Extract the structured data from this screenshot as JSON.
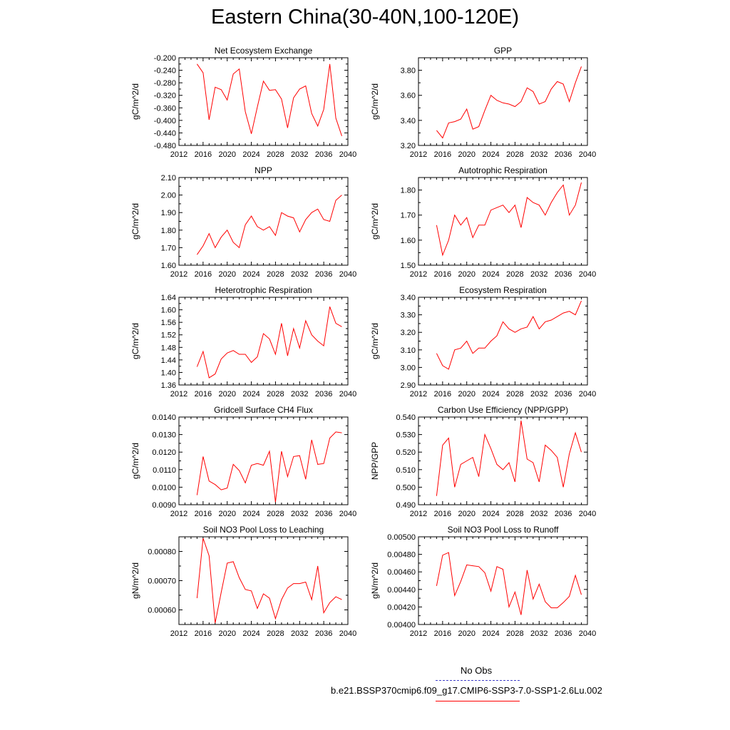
{
  "title": "Eastern China(30-40N,100-120E)",
  "legend": {
    "items": [
      {
        "label": "No Obs",
        "color": "#4040c8",
        "style": "dashed"
      },
      {
        "label": "b.e21.BSSP370cmip6.f09_g17.CMIP6-SSP3-7.0-SSP1-2.6Lu.002",
        "color": "#ff0000",
        "style": "solid"
      }
    ]
  },
  "colors": {
    "series": "#ff0000",
    "axis": "#000000"
  },
  "chart_data": [
    {
      "type": "line",
      "title": "Net Ecosystem Exchange",
      "ylabel": "gC/m^2/d",
      "xlim": [
        2012,
        2040
      ],
      "ylim": [
        -0.48,
        -0.2
      ],
      "yticks": [
        "-0.480",
        "-0.440",
        "-0.400",
        "-0.360",
        "-0.320",
        "-0.280",
        "-0.240",
        "-0.200"
      ],
      "ytick_values": [
        -0.48,
        -0.44,
        -0.4,
        -0.36,
        -0.32,
        -0.28,
        -0.24,
        -0.2
      ],
      "xticks": [
        "2012",
        "2016",
        "2020",
        "2024",
        "2028",
        "2032",
        "2036",
        "2040"
      ],
      "series": [
        {
          "name": "b.e21.BSSP370cmip6.f09_g17.CMIP6-SSP3-7.0-SSP1-2.6Lu.002",
          "x": [
            2015,
            2016,
            2017,
            2018,
            2019,
            2020,
            2021,
            2022,
            2023,
            2024,
            2025,
            2026,
            2027,
            2028,
            2029,
            2030,
            2031,
            2032,
            2033,
            2034,
            2035,
            2036,
            2037,
            2038,
            2039
          ],
          "values": [
            -0.22,
            -0.248,
            -0.398,
            -0.294,
            -0.302,
            -0.335,
            -0.252,
            -0.236,
            -0.372,
            -0.443,
            -0.357,
            -0.275,
            -0.304,
            -0.302,
            -0.332,
            -0.424,
            -0.328,
            -0.3,
            -0.29,
            -0.378,
            -0.418,
            -0.365,
            -0.22,
            -0.393,
            -0.45
          ]
        }
      ]
    },
    {
      "type": "line",
      "title": "GPP",
      "ylabel": "gC/m^2/d",
      "xlim": [
        2012,
        2040
      ],
      "ylim": [
        3.2,
        3.9
      ],
      "yticks": [
        "3.20",
        "3.40",
        "3.60",
        "3.80"
      ],
      "ytick_values": [
        3.2,
        3.4,
        3.6,
        3.8
      ],
      "xticks": [
        "2012",
        "2016",
        "2020",
        "2024",
        "2028",
        "2032",
        "2036",
        "2040"
      ],
      "series": [
        {
          "name": "b.e21.BSSP370cmip6.f09_g17.CMIP6-SSP3-7.0-SSP1-2.6Lu.002",
          "x": [
            2015,
            2016,
            2017,
            2018,
            2019,
            2020,
            2021,
            2022,
            2023,
            2024,
            2025,
            2026,
            2027,
            2028,
            2029,
            2030,
            2031,
            2032,
            2033,
            2034,
            2035,
            2036,
            2037,
            2038,
            2039
          ],
          "values": [
            3.32,
            3.26,
            3.38,
            3.39,
            3.41,
            3.49,
            3.33,
            3.35,
            3.48,
            3.6,
            3.56,
            3.54,
            3.53,
            3.51,
            3.55,
            3.66,
            3.63,
            3.53,
            3.55,
            3.65,
            3.71,
            3.69,
            3.55,
            3.7,
            3.83
          ]
        }
      ]
    },
    {
      "type": "line",
      "title": "NPP",
      "ylabel": "gC/m^2/d",
      "xlim": [
        2012,
        2040
      ],
      "ylim": [
        1.6,
        2.1
      ],
      "yticks": [
        "1.60",
        "1.70",
        "1.80",
        "1.90",
        "2.00",
        "2.10"
      ],
      "ytick_values": [
        1.6,
        1.7,
        1.8,
        1.9,
        2.0,
        2.1
      ],
      "xticks": [
        "2012",
        "2016",
        "2020",
        "2024",
        "2028",
        "2032",
        "2036",
        "2040"
      ],
      "series": [
        {
          "name": "b.e21.BSSP370cmip6.f09_g17.CMIP6-SSP3-7.0-SSP1-2.6Lu.002",
          "x": [
            2015,
            2016,
            2017,
            2018,
            2019,
            2020,
            2021,
            2022,
            2023,
            2024,
            2025,
            2026,
            2027,
            2028,
            2029,
            2030,
            2031,
            2032,
            2033,
            2034,
            2035,
            2036,
            2037,
            2038,
            2039
          ],
          "values": [
            1.66,
            1.71,
            1.78,
            1.7,
            1.76,
            1.8,
            1.73,
            1.7,
            1.83,
            1.88,
            1.82,
            1.8,
            1.82,
            1.77,
            1.9,
            1.88,
            1.87,
            1.79,
            1.86,
            1.9,
            1.92,
            1.86,
            1.85,
            1.97,
            2.0
          ]
        }
      ]
    },
    {
      "type": "line",
      "title": "Autotrophic Respiration",
      "ylabel": "gC/m^2/d",
      "xlim": [
        2012,
        2040
      ],
      "ylim": [
        1.5,
        1.85
      ],
      "yticks": [
        "1.50",
        "1.60",
        "1.70",
        "1.80"
      ],
      "ytick_values": [
        1.5,
        1.6,
        1.7,
        1.8
      ],
      "xticks": [
        "2012",
        "2016",
        "2020",
        "2024",
        "2028",
        "2032",
        "2036",
        "2040"
      ],
      "series": [
        {
          "name": "b.e21.BSSP370cmip6.f09_g17.CMIP6-SSP3-7.0-SSP1-2.6Lu.002",
          "x": [
            2015,
            2016,
            2017,
            2018,
            2019,
            2020,
            2021,
            2022,
            2023,
            2024,
            2025,
            2026,
            2027,
            2028,
            2029,
            2030,
            2031,
            2032,
            2033,
            2034,
            2035,
            2036,
            2037,
            2038,
            2039
          ],
          "values": [
            1.66,
            1.54,
            1.6,
            1.7,
            1.66,
            1.69,
            1.61,
            1.66,
            1.66,
            1.72,
            1.73,
            1.74,
            1.71,
            1.74,
            1.65,
            1.77,
            1.75,
            1.74,
            1.7,
            1.75,
            1.79,
            1.82,
            1.7,
            1.74,
            1.83
          ]
        }
      ]
    },
    {
      "type": "line",
      "title": "Heterotrophic Respiration",
      "ylabel": "gC/m^2/d",
      "xlim": [
        2012,
        2040
      ],
      "ylim": [
        1.36,
        1.64
      ],
      "yticks": [
        "1.36",
        "1.40",
        "1.44",
        "1.48",
        "1.52",
        "1.56",
        "1.60",
        "1.64"
      ],
      "ytick_values": [
        1.36,
        1.4,
        1.44,
        1.48,
        1.52,
        1.56,
        1.6,
        1.64
      ],
      "xticks": [
        "2012",
        "2016",
        "2020",
        "2024",
        "2028",
        "2032",
        "2036",
        "2040"
      ],
      "series": [
        {
          "name": "b.e21.BSSP370cmip6.f09_g17.CMIP6-SSP3-7.0-SSP1-2.6Lu.002",
          "x": [
            2015,
            2016,
            2017,
            2018,
            2019,
            2020,
            2021,
            2022,
            2023,
            2024,
            2025,
            2026,
            2027,
            2028,
            2029,
            2030,
            2031,
            2032,
            2033,
            2034,
            2035,
            2036,
            2037,
            2038,
            2039
          ],
          "values": [
            1.418,
            1.467,
            1.383,
            1.395,
            1.443,
            1.462,
            1.47,
            1.458,
            1.458,
            1.432,
            1.45,
            1.524,
            1.507,
            1.458,
            1.557,
            1.453,
            1.54,
            1.478,
            1.565,
            1.52,
            1.5,
            1.485,
            1.61,
            1.557,
            1.546
          ]
        }
      ]
    },
    {
      "type": "line",
      "title": "Ecosystem Respiration",
      "ylabel": "gC/m^2/d",
      "xlim": [
        2012,
        2040
      ],
      "ylim": [
        2.9,
        3.4
      ],
      "yticks": [
        "2.90",
        "3.00",
        "3.10",
        "3.20",
        "3.30",
        "3.40"
      ],
      "ytick_values": [
        2.9,
        3.0,
        3.1,
        3.2,
        3.3,
        3.4
      ],
      "xticks": [
        "2012",
        "2016",
        "2020",
        "2024",
        "2028",
        "2032",
        "2036",
        "2040"
      ],
      "series": [
        {
          "name": "b.e21.BSSP370cmip6.f09_g17.CMIP6-SSP3-7.0-SSP1-2.6Lu.002",
          "x": [
            2015,
            2016,
            2017,
            2018,
            2019,
            2020,
            2021,
            2022,
            2023,
            2024,
            2025,
            2026,
            2027,
            2028,
            2029,
            2030,
            2031,
            2032,
            2033,
            2034,
            2035,
            2036,
            2037,
            2038,
            2039
          ],
          "values": [
            3.08,
            3.01,
            2.99,
            3.1,
            3.11,
            3.15,
            3.08,
            3.11,
            3.11,
            3.15,
            3.18,
            3.26,
            3.22,
            3.2,
            3.22,
            3.23,
            3.29,
            3.22,
            3.26,
            3.27,
            3.29,
            3.31,
            3.32,
            3.3,
            3.38
          ]
        }
      ]
    },
    {
      "type": "line",
      "title": "Gridcell Surface CH4 Flux",
      "ylabel": "gC/m^2/d",
      "xlim": [
        2012,
        2040
      ],
      "ylim": [
        0.009,
        0.014
      ],
      "yticks": [
        "0.0090",
        "0.0100",
        "0.0110",
        "0.0120",
        "0.0130",
        "0.0140"
      ],
      "ytick_values": [
        0.009,
        0.01,
        0.011,
        0.012,
        0.013,
        0.014
      ],
      "xticks": [
        "2012",
        "2016",
        "2020",
        "2024",
        "2028",
        "2032",
        "2036",
        "2040"
      ],
      "series": [
        {
          "name": "b.e21.BSSP370cmip6.f09_g17.CMIP6-SSP3-7.0-SSP1-2.6Lu.002",
          "x": [
            2015,
            2016,
            2017,
            2018,
            2019,
            2020,
            2021,
            2022,
            2023,
            2024,
            2025,
            2026,
            2027,
            2028,
            2029,
            2030,
            2031,
            2032,
            2033,
            2034,
            2035,
            2036,
            2037,
            2038,
            2039
          ],
          "values": [
            0.00955,
            0.01175,
            0.01035,
            0.01015,
            0.00985,
            0.00995,
            0.0113,
            0.01095,
            0.01025,
            0.01125,
            0.01135,
            0.01125,
            0.01205,
            0.00915,
            0.01205,
            0.0106,
            0.01175,
            0.0118,
            0.01045,
            0.0127,
            0.0113,
            0.01135,
            0.0128,
            0.01315,
            0.0131
          ]
        }
      ]
    },
    {
      "type": "line",
      "title": "Carbon Use Efficiency (NPP/GPP)",
      "ylabel": "NPP/GPP",
      "xlim": [
        2012,
        2040
      ],
      "ylim": [
        0.49,
        0.54
      ],
      "yticks": [
        "0.490",
        "0.500",
        "0.510",
        "0.520",
        "0.530",
        "0.540"
      ],
      "ytick_values": [
        0.49,
        0.5,
        0.51,
        0.52,
        0.53,
        0.54
      ],
      "xticks": [
        "2012",
        "2016",
        "2020",
        "2024",
        "2028",
        "2032",
        "2036",
        "2040"
      ],
      "series": [
        {
          "name": "b.e21.BSSP370cmip6.f09_g17.CMIP6-SSP3-7.0-SSP1-2.6Lu.002",
          "x": [
            2015,
            2016,
            2017,
            2018,
            2019,
            2020,
            2021,
            2022,
            2023,
            2024,
            2025,
            2026,
            2027,
            2028,
            2029,
            2030,
            2031,
            2032,
            2033,
            2034,
            2035,
            2036,
            2037,
            2038,
            2039
          ],
          "values": [
            0.495,
            0.524,
            0.528,
            0.5,
            0.513,
            0.515,
            0.517,
            0.506,
            0.53,
            0.522,
            0.513,
            0.51,
            0.514,
            0.503,
            0.538,
            0.516,
            0.514,
            0.503,
            0.524,
            0.521,
            0.517,
            0.5,
            0.519,
            0.531,
            0.52
          ]
        }
      ]
    },
    {
      "type": "line",
      "title": "Soil NO3 Pool Loss to Leaching",
      "ylabel": "gN/m^2/d",
      "xlim": [
        2012,
        2040
      ],
      "ylim": [
        0.00055,
        0.00085
      ],
      "yticks": [
        "0.00060",
        "0.00070",
        "0.00080"
      ],
      "ytick_values": [
        0.0006,
        0.0007,
        0.0008
      ],
      "xticks": [
        "2012",
        "2016",
        "2020",
        "2024",
        "2028",
        "2032",
        "2036",
        "2040"
      ],
      "series": [
        {
          "name": "b.e21.BSSP370cmip6.f09_g17.CMIP6-SSP3-7.0-SSP1-2.6Lu.002",
          "x": [
            2015,
            2016,
            2017,
            2018,
            2019,
            2020,
            2021,
            2022,
            2023,
            2024,
            2025,
            2026,
            2027,
            2028,
            2029,
            2030,
            2031,
            2032,
            2033,
            2034,
            2035,
            2036,
            2037,
            2038,
            2039
          ],
          "values": [
            0.00064,
            0.000845,
            0.000785,
            0.000555,
            0.00066,
            0.00076,
            0.000765,
            0.00071,
            0.00067,
            0.000665,
            0.000605,
            0.000655,
            0.00064,
            0.00057,
            0.000635,
            0.000675,
            0.00069,
            0.00069,
            0.000695,
            0.000635,
            0.00075,
            0.00059,
            0.000625,
            0.000645,
            0.000635
          ]
        }
      ]
    },
    {
      "type": "line",
      "title": "Soil NO3 Pool Loss to Runoff",
      "ylabel": "gN/m^2/d",
      "xlim": [
        2012,
        2040
      ],
      "ylim": [
        0.004,
        0.005
      ],
      "yticks": [
        "0.00400",
        "0.00420",
        "0.00440",
        "0.00460",
        "0.00480",
        "0.00500"
      ],
      "ytick_values": [
        0.004,
        0.0042,
        0.0044,
        0.0046,
        0.0048,
        0.005
      ],
      "xticks": [
        "2012",
        "2016",
        "2020",
        "2024",
        "2028",
        "2032",
        "2036",
        "2040"
      ],
      "series": [
        {
          "name": "b.e21.BSSP370cmip6.f09_g17.CMIP6-SSP3-7.0-SSP1-2.6Lu.002",
          "x": [
            2015,
            2016,
            2017,
            2018,
            2019,
            2020,
            2021,
            2022,
            2023,
            2024,
            2025,
            2026,
            2027,
            2028,
            2029,
            2030,
            2031,
            2032,
            2033,
            2034,
            2035,
            2036,
            2037,
            2038,
            2039
          ],
          "values": [
            0.00444,
            0.00479,
            0.00482,
            0.00433,
            0.00449,
            0.00468,
            0.00467,
            0.00466,
            0.00459,
            0.00438,
            0.00466,
            0.00463,
            0.0042,
            0.00437,
            0.00411,
            0.00462,
            0.00429,
            0.00446,
            0.00426,
            0.00419,
            0.00419,
            0.00425,
            0.00432,
            0.00456,
            0.00434
          ]
        }
      ]
    }
  ]
}
